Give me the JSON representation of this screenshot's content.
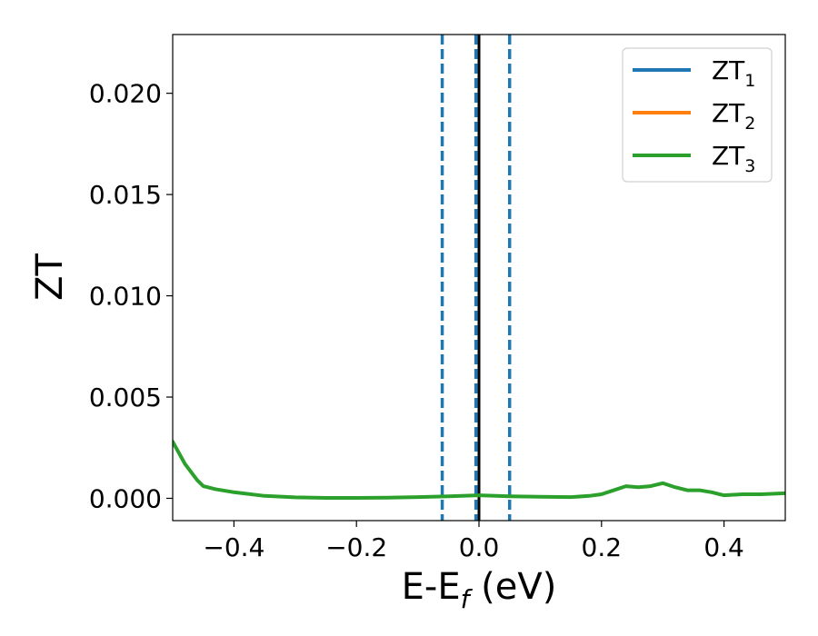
{
  "chart_data": {
    "type": "line",
    "xlabel": {
      "main": "E-E",
      "sub": "f",
      "suffix": " (eV)"
    },
    "ylabel": "ZT",
    "xlim": [
      -0.5,
      0.5
    ],
    "ylim": [
      -0.0011,
      0.0229
    ],
    "xticks": [
      -0.4,
      -0.2,
      0.0,
      0.2,
      0.4
    ],
    "xtick_labels": [
      "−0.4",
      "−0.2",
      "0.0",
      "0.2",
      "0.4"
    ],
    "yticks": [
      0.0,
      0.005,
      0.01,
      0.015,
      0.02
    ],
    "ytick_labels": [
      "0.000",
      "0.005",
      "0.010",
      "0.015",
      "0.020"
    ],
    "grid": false,
    "legend": {
      "position": "top-right"
    },
    "series": [
      {
        "name": {
          "main": "ZT",
          "sub": "1"
        },
        "color": "#1f77b4",
        "x": [],
        "y": []
      },
      {
        "name": {
          "main": "ZT",
          "sub": "2"
        },
        "color": "#ff7f0e",
        "x": [],
        "y": []
      },
      {
        "name": {
          "main": "ZT",
          "sub": "3"
        },
        "color": "#2ca02c",
        "x": [
          -0.5,
          -0.48,
          -0.46,
          -0.45,
          -0.43,
          -0.4,
          -0.35,
          -0.3,
          -0.25,
          -0.2,
          -0.15,
          -0.1,
          -0.05,
          0.0,
          0.05,
          0.1,
          0.15,
          0.18,
          0.2,
          0.22,
          0.24,
          0.26,
          0.28,
          0.3,
          0.32,
          0.34,
          0.36,
          0.38,
          0.4,
          0.43,
          0.46,
          0.5
        ],
        "y": [
          0.0028,
          0.0017,
          0.0009,
          0.0006,
          0.00045,
          0.0003,
          0.00012,
          5e-05,
          2e-05,
          2e-05,
          3e-05,
          6e-05,
          0.0001,
          0.00015,
          0.0001,
          8e-05,
          6e-05,
          0.00012,
          0.0002,
          0.0004,
          0.0006,
          0.00055,
          0.0006,
          0.00075,
          0.00055,
          0.0004,
          0.0004,
          0.0003,
          0.00015,
          0.0002,
          0.0002,
          0.00025
        ]
      }
    ],
    "vlines": [
      {
        "x": -0.06,
        "style": "dashed",
        "color": "#1f77b4"
      },
      {
        "x": -0.005,
        "style": "dashed",
        "color": "#1f77b4"
      },
      {
        "x": 0.0,
        "style": "solid",
        "color": "#000000"
      },
      {
        "x": 0.05,
        "style": "dashed",
        "color": "#1f77b4"
      }
    ]
  }
}
